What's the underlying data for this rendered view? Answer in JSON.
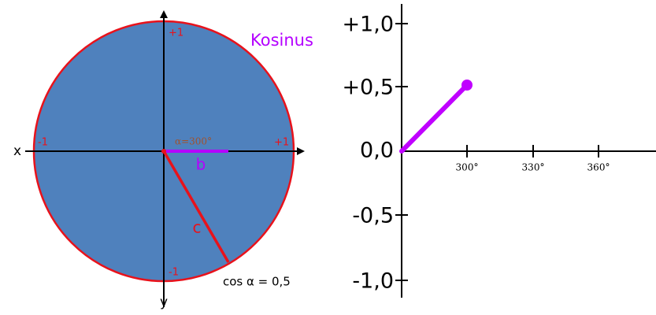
{
  "circle": {
    "axis_labels": {
      "x": "x",
      "y": "y"
    },
    "ticks": {
      "top": "+1",
      "left": "-1",
      "right": "+1",
      "bottom": "-1"
    },
    "angle_label": "α=300°",
    "segments": {
      "adjacent": "b",
      "hypotenuse": "c"
    },
    "title": "Kosinus",
    "formula": "cos α = 0,5"
  },
  "plot": {
    "y_ticks": [
      "+1,0",
      "+0,5",
      "0,0",
      "-0,5",
      "-1,0"
    ],
    "x_ticks": [
      "300°",
      "330°",
      "360°"
    ]
  }
}
